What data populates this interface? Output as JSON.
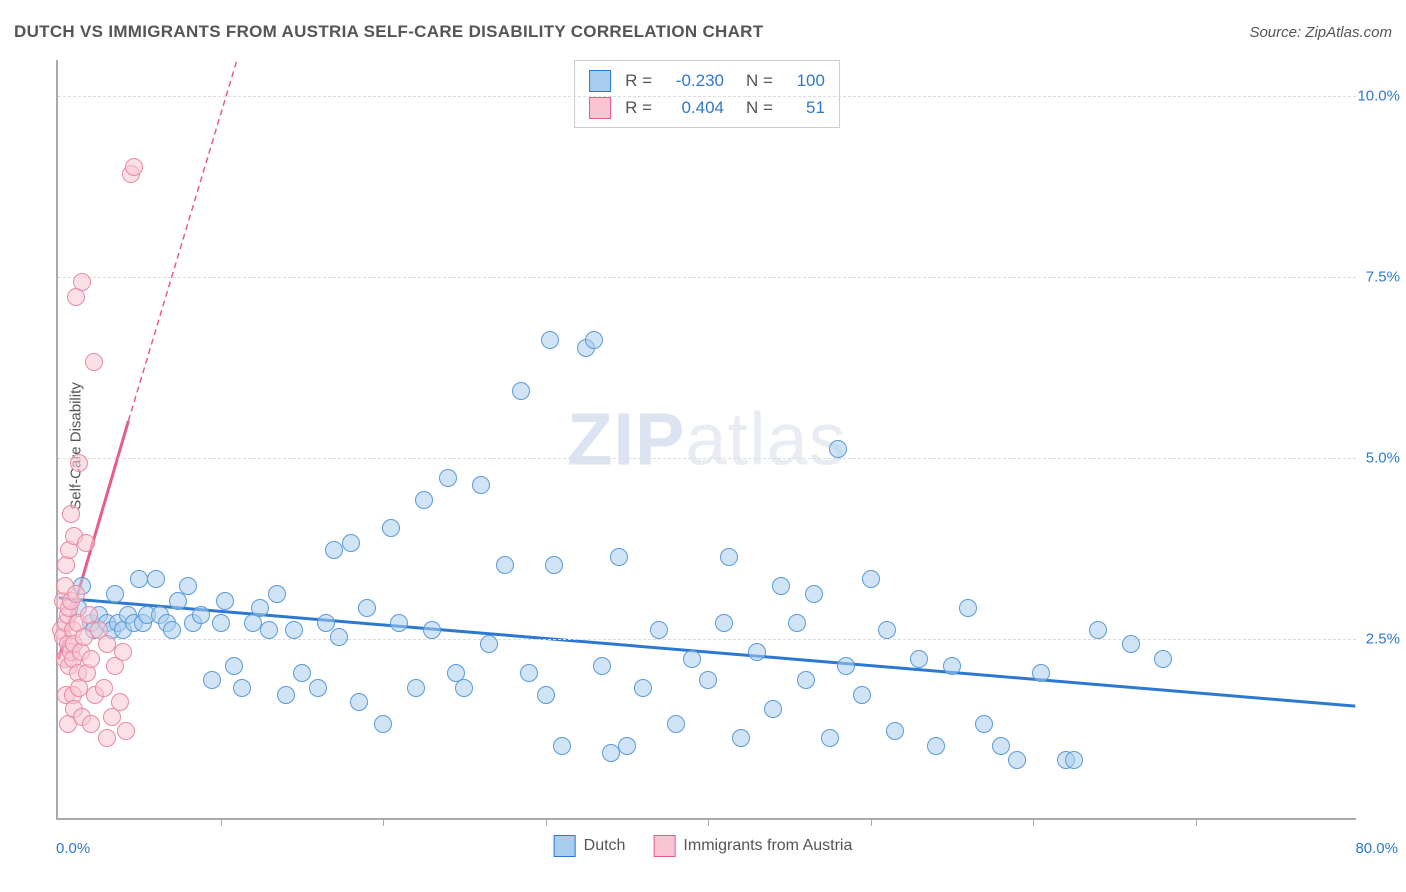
{
  "title": "DUTCH VS IMMIGRANTS FROM AUSTRIA SELF-CARE DISABILITY CORRELATION CHART",
  "source": "Source: ZipAtlas.com",
  "ylabel": "Self-Care Disability",
  "watermark_bold": "ZIP",
  "watermark_light": "atlas",
  "chart": {
    "type": "scatter",
    "xlim": [
      0,
      80
    ],
    "ylim": [
      0,
      10.5
    ],
    "xlabel_min": "0.0%",
    "xlabel_max": "80.0%",
    "yticks": [
      {
        "v": 2.5,
        "label": "2.5%"
      },
      {
        "v": 5.0,
        "label": "5.0%"
      },
      {
        "v": 7.5,
        "label": "7.5%"
      },
      {
        "v": 10.0,
        "label": "10.0%"
      }
    ],
    "xticks_minor": [
      10,
      20,
      30,
      40,
      50,
      60,
      70
    ],
    "grid_color": "#dcdcdc",
    "background_color": "#ffffff",
    "axis_color": "#aaaaaa",
    "marker_radius": 9,
    "marker_border_width": 1.5,
    "legend": [
      {
        "label": "Dutch",
        "fill": "#a9cdee",
        "stroke": "#2d79cf"
      },
      {
        "label": "Immigrants from Austria",
        "fill": "#f7c6d2",
        "stroke": "#e75d86"
      }
    ],
    "stats": [
      {
        "fill": "#a9cdee",
        "stroke": "#2d79cf",
        "R": "-0.230",
        "N": "100"
      },
      {
        "fill": "#f7c6d2",
        "stroke": "#e75d86",
        "R": "0.404",
        "N": "51"
      }
    ],
    "series": [
      {
        "name": "Dutch",
        "fill": "rgba(169,205,238,0.55)",
        "stroke": "#5a9bd8",
        "trend": {
          "x1": 0,
          "y1": 3.05,
          "x2": 80,
          "y2": 1.55,
          "color": "#2d79cf",
          "width": 3,
          "dash": "none",
          "ext": {
            "x1": 80,
            "y1": 1.55,
            "x2": 80,
            "y2": 1.55
          }
        },
        "points": [
          [
            1.2,
            2.9
          ],
          [
            1.5,
            3.2
          ],
          [
            2.0,
            2.7
          ],
          [
            2.2,
            2.6
          ],
          [
            2.5,
            2.8
          ],
          [
            3.0,
            2.7
          ],
          [
            3.3,
            2.6
          ],
          [
            3.5,
            3.1
          ],
          [
            3.7,
            2.7
          ],
          [
            4.0,
            2.6
          ],
          [
            4.3,
            2.8
          ],
          [
            4.7,
            2.7
          ],
          [
            5.0,
            3.3
          ],
          [
            5.2,
            2.7
          ],
          [
            5.5,
            2.8
          ],
          [
            6.0,
            3.3
          ],
          [
            6.3,
            2.8
          ],
          [
            6.7,
            2.7
          ],
          [
            7.0,
            2.6
          ],
          [
            7.4,
            3.0
          ],
          [
            8.0,
            3.2
          ],
          [
            8.3,
            2.7
          ],
          [
            8.8,
            2.8
          ],
          [
            9.5,
            1.9
          ],
          [
            10.0,
            2.7
          ],
          [
            10.3,
            3.0
          ],
          [
            10.8,
            2.1
          ],
          [
            11.3,
            1.8
          ],
          [
            12.0,
            2.7
          ],
          [
            12.4,
            2.9
          ],
          [
            13.0,
            2.6
          ],
          [
            13.5,
            3.1
          ],
          [
            14.0,
            1.7
          ],
          [
            14.5,
            2.6
          ],
          [
            15.0,
            2.0
          ],
          [
            16.0,
            1.8
          ],
          [
            16.5,
            2.7
          ],
          [
            17.0,
            3.7
          ],
          [
            17.3,
            2.5
          ],
          [
            18.0,
            3.8
          ],
          [
            18.5,
            1.6
          ],
          [
            19.0,
            2.9
          ],
          [
            20.0,
            1.3
          ],
          [
            20.5,
            4.0
          ],
          [
            21.0,
            2.7
          ],
          [
            22.0,
            1.8
          ],
          [
            22.5,
            4.4
          ],
          [
            23.0,
            2.6
          ],
          [
            24.0,
            4.7
          ],
          [
            24.5,
            2.0
          ],
          [
            25.0,
            1.8
          ],
          [
            26.0,
            4.6
          ],
          [
            26.5,
            2.4
          ],
          [
            27.5,
            3.5
          ],
          [
            28.5,
            5.9
          ],
          [
            29.0,
            2.0
          ],
          [
            30.0,
            1.7
          ],
          [
            30.3,
            6.6
          ],
          [
            30.5,
            3.5
          ],
          [
            31.0,
            1.0
          ],
          [
            32.5,
            6.5
          ],
          [
            33.0,
            6.6
          ],
          [
            33.5,
            2.1
          ],
          [
            34.0,
            0.9
          ],
          [
            34.5,
            3.6
          ],
          [
            35.0,
            1.0
          ],
          [
            36.0,
            1.8
          ],
          [
            37.0,
            2.6
          ],
          [
            38.0,
            1.3
          ],
          [
            39.0,
            2.2
          ],
          [
            40.0,
            1.9
          ],
          [
            41.0,
            2.7
          ],
          [
            41.3,
            3.6
          ],
          [
            42.0,
            1.1
          ],
          [
            43.0,
            2.3
          ],
          [
            44.0,
            1.5
          ],
          [
            44.5,
            3.2
          ],
          [
            45.5,
            2.7
          ],
          [
            46.0,
            1.9
          ],
          [
            46.5,
            3.1
          ],
          [
            47.5,
            1.1
          ],
          [
            48.0,
            5.1
          ],
          [
            48.5,
            2.1
          ],
          [
            49.5,
            1.7
          ],
          [
            50.0,
            3.3
          ],
          [
            51.0,
            2.6
          ],
          [
            51.5,
            1.2
          ],
          [
            53.0,
            2.2
          ],
          [
            54.0,
            1.0
          ],
          [
            55.0,
            2.1
          ],
          [
            56.0,
            2.9
          ],
          [
            57.0,
            1.3
          ],
          [
            58.0,
            1.0
          ],
          [
            59.0,
            0.8
          ],
          [
            60.5,
            2.0
          ],
          [
            62.0,
            0.8
          ],
          [
            62.5,
            0.8
          ],
          [
            64.0,
            2.6
          ],
          [
            66.0,
            2.4
          ],
          [
            68.0,
            2.2
          ]
        ]
      },
      {
        "name": "Immigrants from Austria",
        "fill": "rgba(247,198,210,0.55)",
        "stroke": "#ea89a6",
        "trend": {
          "x1": 0,
          "y1": 2.2,
          "x2": 4.3,
          "y2": 5.5,
          "color": "#e75d86",
          "width": 3,
          "dash": "none",
          "ext": {
            "x1": 4.3,
            "y1": 5.5,
            "x2": 11.0,
            "y2": 10.5,
            "dash": "6,4"
          }
        },
        "points": [
          [
            0.2,
            2.6
          ],
          [
            0.3,
            3.0
          ],
          [
            0.3,
            2.5
          ],
          [
            0.4,
            3.2
          ],
          [
            0.4,
            2.2
          ],
          [
            0.5,
            2.7
          ],
          [
            0.5,
            1.7
          ],
          [
            0.5,
            3.5
          ],
          [
            0.6,
            2.4
          ],
          [
            0.6,
            2.8
          ],
          [
            0.6,
            1.3
          ],
          [
            0.7,
            2.9
          ],
          [
            0.7,
            3.7
          ],
          [
            0.7,
            2.1
          ],
          [
            0.8,
            2.3
          ],
          [
            0.8,
            3.0
          ],
          [
            0.8,
            4.2
          ],
          [
            0.9,
            2.2
          ],
          [
            0.9,
            1.7
          ],
          [
            0.9,
            2.6
          ],
          [
            1.0,
            3.9
          ],
          [
            1.0,
            2.4
          ],
          [
            1.0,
            1.5
          ],
          [
            1.1,
            3.1
          ],
          [
            1.1,
            7.2
          ],
          [
            1.2,
            2.7
          ],
          [
            1.2,
            2.0
          ],
          [
            1.3,
            4.9
          ],
          [
            1.3,
            1.8
          ],
          [
            1.4,
            2.3
          ],
          [
            1.5,
            7.4
          ],
          [
            1.5,
            1.4
          ],
          [
            1.6,
            2.5
          ],
          [
            1.7,
            3.8
          ],
          [
            1.8,
            2.0
          ],
          [
            1.9,
            2.8
          ],
          [
            2.0,
            2.2
          ],
          [
            2.0,
            1.3
          ],
          [
            2.2,
            6.3
          ],
          [
            2.3,
            1.7
          ],
          [
            2.5,
            2.6
          ],
          [
            2.8,
            1.8
          ],
          [
            3.0,
            2.4
          ],
          [
            3.0,
            1.1
          ],
          [
            3.3,
            1.4
          ],
          [
            3.5,
            2.1
          ],
          [
            3.8,
            1.6
          ],
          [
            4.0,
            2.3
          ],
          [
            4.2,
            1.2
          ],
          [
            4.5,
            8.9
          ],
          [
            4.7,
            9.0
          ]
        ]
      }
    ]
  }
}
